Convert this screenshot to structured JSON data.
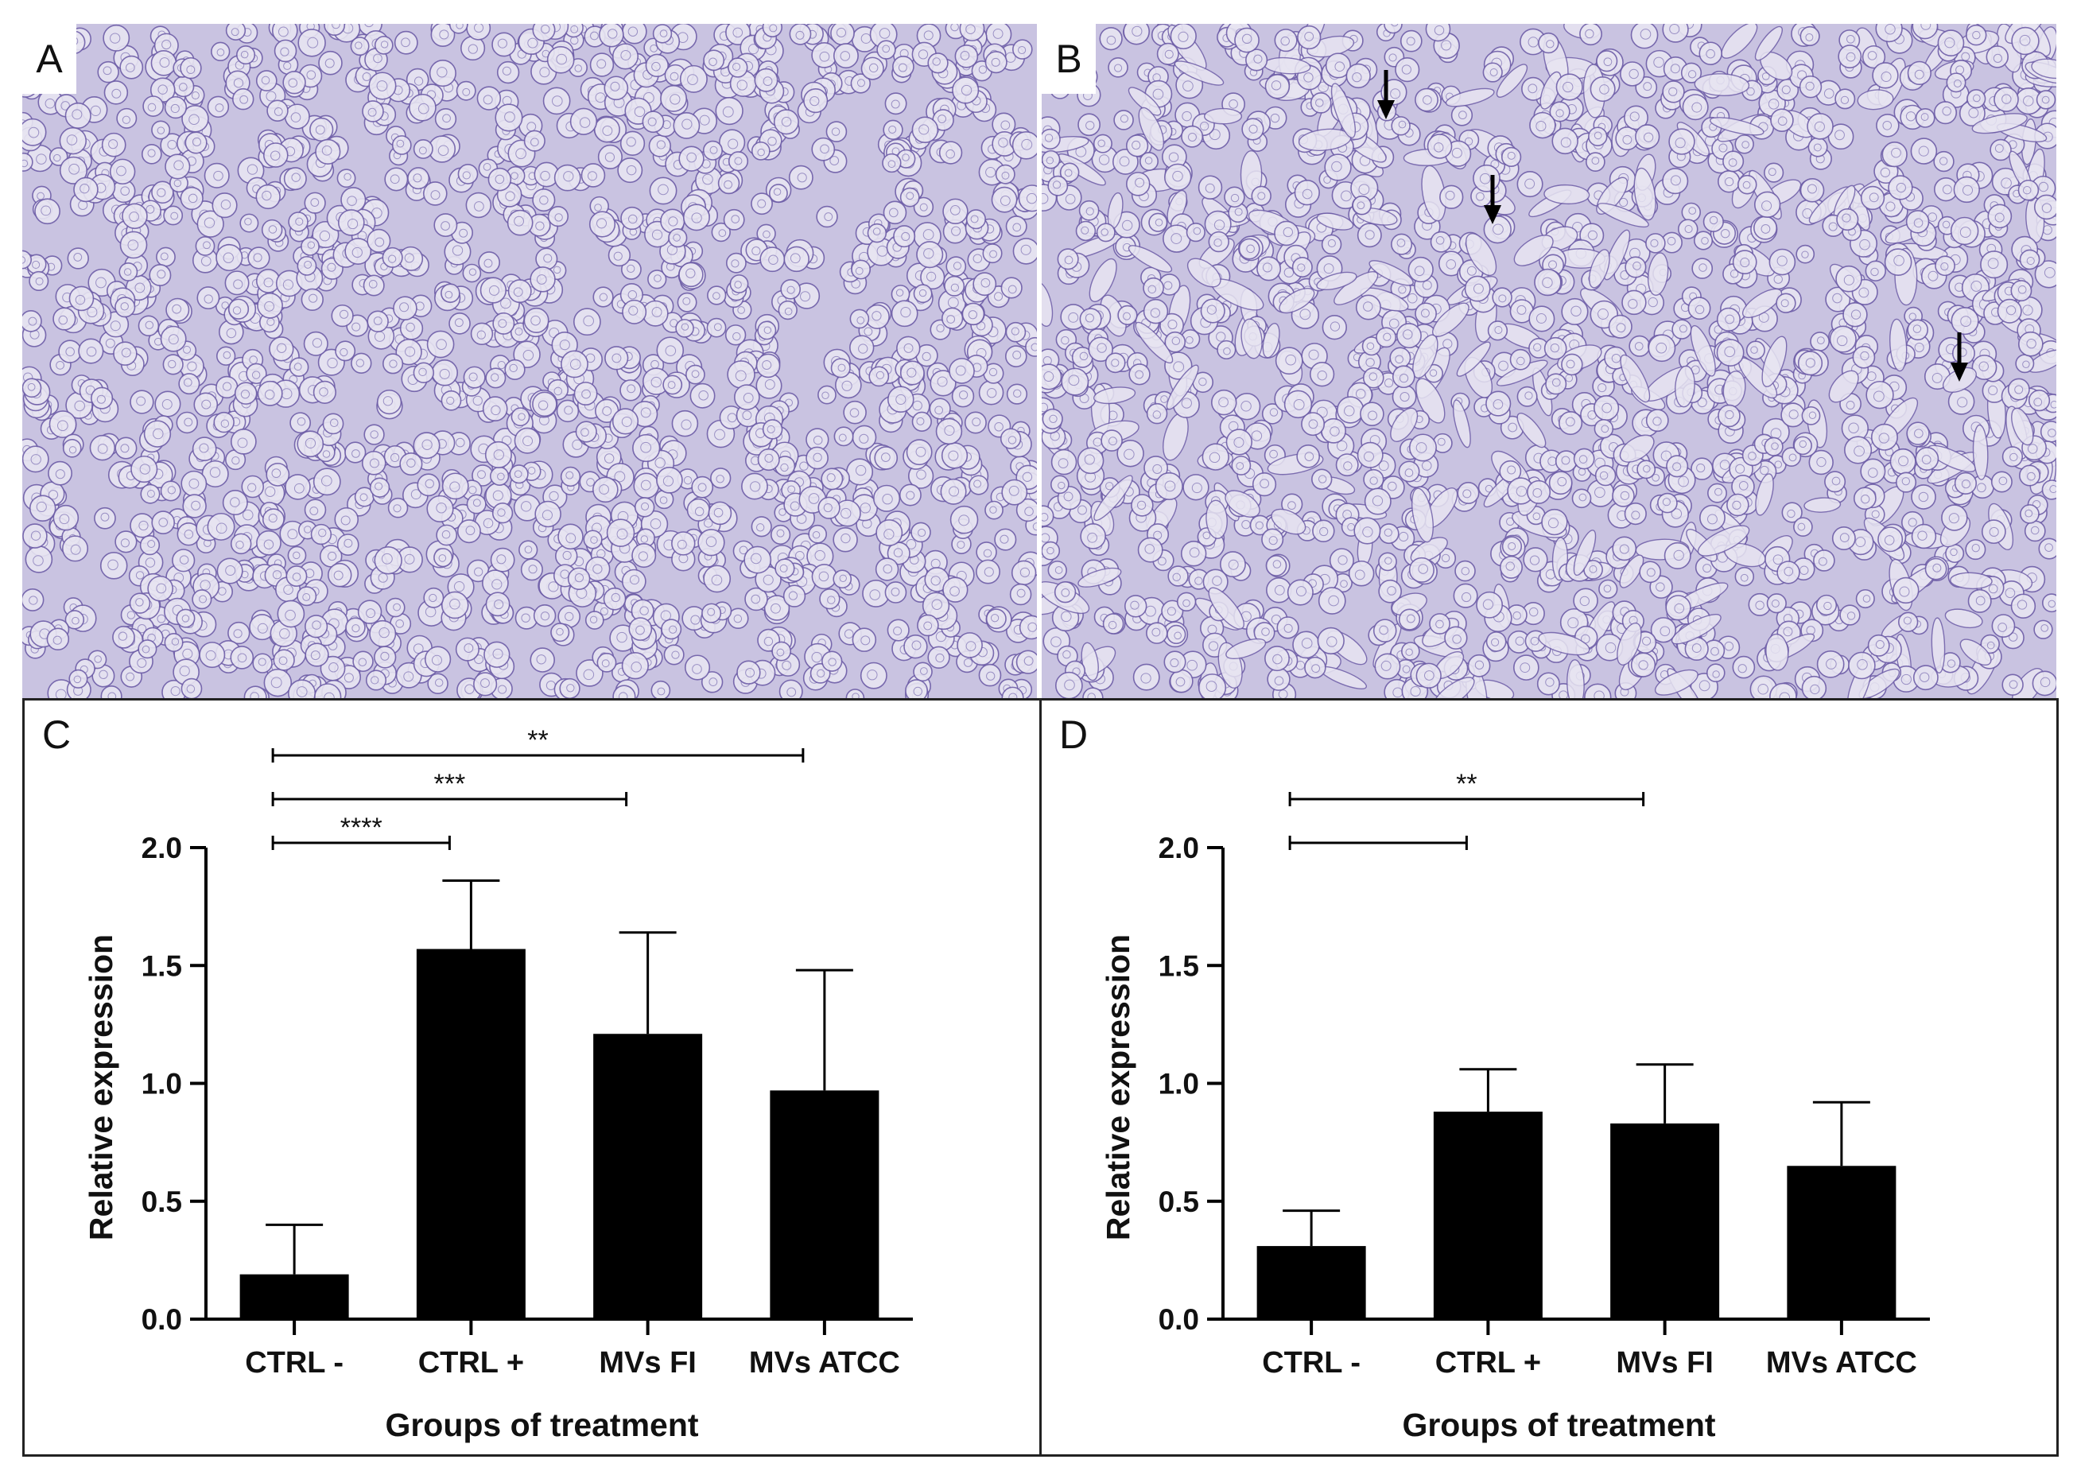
{
  "panels": {
    "a": {
      "label": "A"
    },
    "b": {
      "label": "B"
    },
    "c": {
      "label": "C"
    },
    "d": {
      "label": "D"
    }
  },
  "micrograph_colors": {
    "background": "#c9c3e1",
    "cell_fill": "#e8e5f2",
    "cell_edge": "#6f5fa8"
  },
  "chart_data": [
    {
      "type": "bar",
      "panel": "C",
      "categories": [
        "CTRL -",
        "CTRL +",
        "MVs FI",
        "MVs ATCC"
      ],
      "values": [
        0.19,
        1.57,
        1.21,
        0.97
      ],
      "errors": [
        0.21,
        0.29,
        0.43,
        0.51
      ],
      "xlabel": "Groups of treatment",
      "ylabel": "Relative expression",
      "ylim": [
        0,
        2.0
      ],
      "yticks": [
        "0.0",
        "0.5",
        "1.0",
        "1.5",
        "2.0"
      ],
      "bar_color": "#000000",
      "significance": [
        {
          "from": "CTRL -",
          "to": "CTRL +",
          "label": "****"
        },
        {
          "from": "CTRL -",
          "to": "MVs FI",
          "label": "***"
        },
        {
          "from": "CTRL -",
          "to": "MVs ATCC",
          "label": "**"
        }
      ]
    },
    {
      "type": "bar",
      "panel": "D",
      "categories": [
        "CTRL -",
        "CTRL +",
        "MVs FI",
        "MVs ATCC"
      ],
      "values": [
        0.31,
        0.88,
        0.83,
        0.65
      ],
      "errors": [
        0.15,
        0.18,
        0.25,
        0.27
      ],
      "xlabel": "Groups of treatment",
      "ylabel": "Relative expression",
      "ylim": [
        0,
        2.0
      ],
      "yticks": [
        "0.0",
        "0.5",
        "1.0",
        "1.5",
        "2.0"
      ],
      "bar_color": "#000000",
      "significance": [
        {
          "from": "CTRL -",
          "to": "CTRL +",
          "label": ""
        },
        {
          "from": "CTRL -",
          "to": "MVs FI",
          "label": "**"
        }
      ]
    }
  ]
}
